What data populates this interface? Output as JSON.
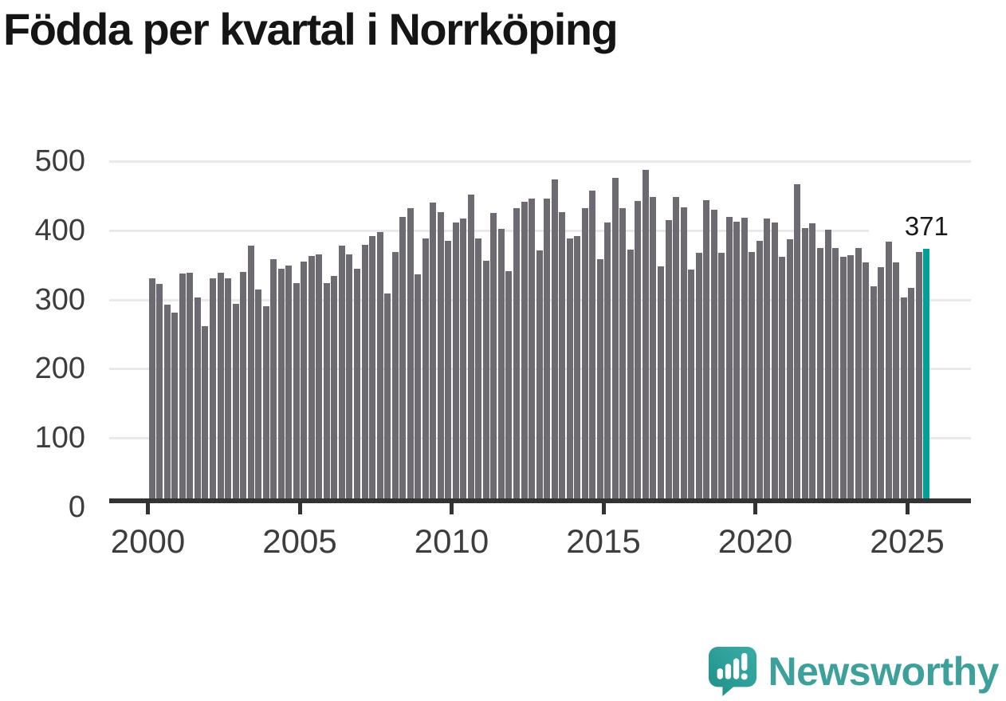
{
  "title": "Födda per kvartal i Norrköping",
  "branding": {
    "name": "Newsworthy",
    "icon": "bar-chart-speech-bubble-icon",
    "text_color": "#3da09a",
    "icon_color": "#2fa09a"
  },
  "chart_data": {
    "type": "bar",
    "title": "Födda per kvartal i Norrköping",
    "xlabel": "",
    "ylabel": "",
    "ylim": [
      0,
      500
    ],
    "yticks": [
      0,
      100,
      200,
      300,
      400,
      500
    ],
    "xticks": [
      "2000",
      "2005",
      "2010",
      "2015",
      "2020",
      "2025"
    ],
    "grid": "horizontal",
    "legend": "none",
    "bar_color": "#6d6b71",
    "highlight_color": "#00a096",
    "highlight_last_bar": true,
    "last_value_label": "371",
    "categories": [
      "2000 Q1",
      "2000 Q2",
      "2000 Q3",
      "2000 Q4",
      "2001 Q1",
      "2001 Q2",
      "2001 Q3",
      "2001 Q4",
      "2002 Q1",
      "2002 Q2",
      "2002 Q3",
      "2002 Q4",
      "2003 Q1",
      "2003 Q2",
      "2003 Q3",
      "2003 Q4",
      "2004 Q1",
      "2004 Q2",
      "2004 Q3",
      "2004 Q4",
      "2005 Q1",
      "2005 Q2",
      "2005 Q3",
      "2005 Q4",
      "2006 Q1",
      "2006 Q2",
      "2006 Q3",
      "2006 Q4",
      "2007 Q1",
      "2007 Q2",
      "2007 Q3",
      "2007 Q4",
      "2008 Q1",
      "2008 Q2",
      "2008 Q3",
      "2008 Q4",
      "2009 Q1",
      "2009 Q2",
      "2009 Q3",
      "2009 Q4",
      "2010 Q1",
      "2010 Q2",
      "2010 Q3",
      "2010 Q4",
      "2011 Q1",
      "2011 Q2",
      "2011 Q3",
      "2011 Q4",
      "2012 Q1",
      "2012 Q2",
      "2012 Q3",
      "2012 Q4",
      "2013 Q1",
      "2013 Q2",
      "2013 Q3",
      "2013 Q4",
      "2014 Q1",
      "2014 Q2",
      "2014 Q3",
      "2014 Q4",
      "2015 Q1",
      "2015 Q2",
      "2015 Q3",
      "2015 Q4",
      "2016 Q1",
      "2016 Q2",
      "2016 Q3",
      "2016 Q4",
      "2017 Q1",
      "2017 Q2",
      "2017 Q3",
      "2017 Q4",
      "2018 Q1",
      "2018 Q2",
      "2018 Q3",
      "2018 Q4",
      "2019 Q1",
      "2019 Q2",
      "2019 Q3",
      "2019 Q4",
      "2020 Q1",
      "2020 Q2",
      "2020 Q3",
      "2020 Q4",
      "2021 Q1",
      "2021 Q2",
      "2021 Q3",
      "2021 Q4",
      "2022 Q1",
      "2022 Q2",
      "2022 Q3",
      "2022 Q4",
      "2023 Q1",
      "2023 Q2",
      "2023 Q3",
      "2023 Q4",
      "2024 Q1",
      "2024 Q2",
      "2024 Q3",
      "2024 Q4",
      "2025 Q1",
      "2025 Q2",
      "2025 Q3"
    ],
    "values": [
      328,
      319,
      289,
      277,
      334,
      336,
      299,
      257,
      327,
      336,
      327,
      290,
      337,
      375,
      311,
      287,
      356,
      342,
      346,
      321,
      352,
      360,
      362,
      320,
      331,
      376,
      363,
      341,
      377,
      390,
      395,
      305,
      366,
      417,
      431,
      333,
      386,
      439,
      425,
      382,
      409,
      415,
      450,
      386,
      353,
      423,
      400,
      338,
      431,
      440,
      444,
      368,
      444,
      472,
      424,
      386,
      390,
      431,
      456,
      356,
      409,
      475,
      431,
      370,
      441,
      486,
      447,
      345,
      413,
      447,
      432,
      340,
      365,
      442,
      428,
      365,
      418,
      411,
      416,
      366,
      383,
      415,
      409,
      359,
      385,
      466,
      401,
      408,
      372,
      399,
      372,
      359,
      361,
      372,
      351,
      316,
      344,
      392,
      351,
      299,
      314,
      366,
      371
    ]
  }
}
